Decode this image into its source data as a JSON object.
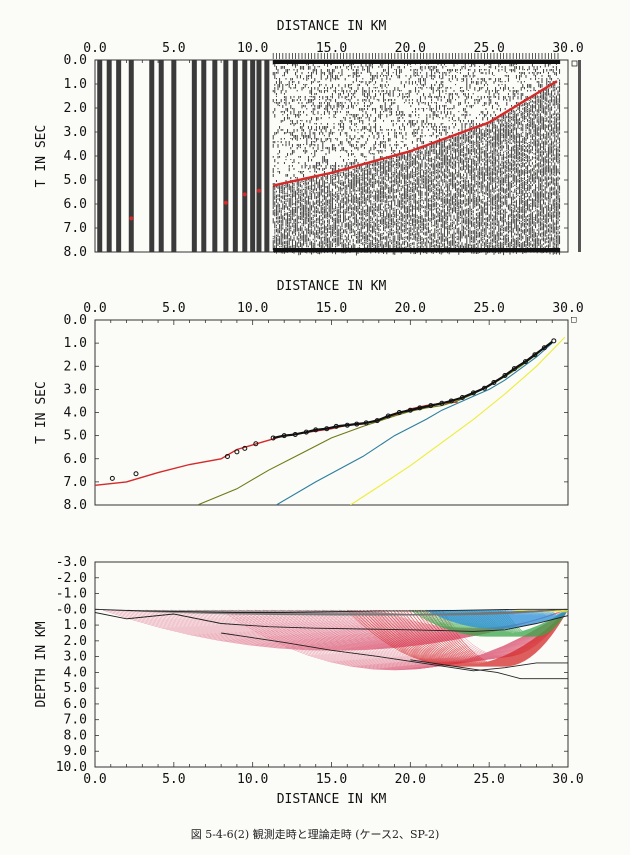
{
  "caption": "図 5-4-6(2)  観測走時と理論走時 (ケース2、SP-2)",
  "colors": {
    "red": "#d42a2a",
    "olive": "#6f7a14",
    "teal": "#2b7f9e",
    "yellow": "#eded3a",
    "pink": "#e0708a",
    "green": "#3aa54a",
    "blue": "#2a8fd8",
    "black": "#222222"
  },
  "chart_data": [
    {
      "type": "scatter",
      "xlabel": "DISTANCE IN KM",
      "ylabel": "T IN SEC",
      "xticks": [
        "0.0",
        "5.0",
        "10.0",
        "15.0",
        "20.0",
        "25.0",
        "30.0"
      ],
      "yticks": [
        "0.0",
        "1.0",
        "2.0",
        "3.0",
        "4.0",
        "5.0",
        "6.0",
        "7.0",
        "8.0"
      ],
      "xlim": [
        0,
        30
      ],
      "ylim": [
        0,
        8
      ],
      "traces_x": [
        0.3,
        0.9,
        1.5,
        2.3,
        3.6,
        4.2,
        5.0,
        6.3,
        6.9,
        7.6,
        8.3,
        8.9,
        9.5,
        10.0,
        10.4,
        10.9
      ],
      "dense_traces_from_km": 11.3,
      "dense_traces_to_km": 29.5,
      "first_arrival": {
        "x": [
          0,
          5,
          8,
          10,
          11.5,
          15,
          20,
          25,
          29.5
        ],
        "y": [
          7.1,
          6.4,
          5.9,
          5.6,
          5.2,
          4.7,
          3.8,
          2.6,
          0.8
        ]
      }
    },
    {
      "type": "line",
      "xlabel": "DISTANCE IN KM",
      "ylabel": "T IN SEC",
      "xticks": [
        "0.0",
        "5.0",
        "10.0",
        "15.0",
        "20.0",
        "25.0",
        "30.0"
      ],
      "yticks": [
        "0.0",
        "1.0",
        "2.0",
        "3.0",
        "4.0",
        "5.0",
        "6.0",
        "7.0",
        "8.0"
      ],
      "xlim": [
        0,
        30
      ],
      "ylim": [
        0,
        8
      ],
      "series": [
        {
          "color": "red",
          "x": [
            0,
            2,
            4,
            6,
            8,
            9,
            10,
            11,
            12,
            13,
            14,
            15,
            16,
            17,
            18,
            19,
            20,
            21,
            22,
            23
          ],
          "y": [
            7.15,
            7.0,
            6.6,
            6.25,
            6.0,
            5.6,
            5.4,
            5.2,
            5.0,
            4.9,
            4.8,
            4.7,
            4.55,
            4.5,
            4.3,
            4.1,
            3.85,
            3.7,
            3.6,
            3.55
          ]
        },
        {
          "color": "olive",
          "x": [
            6.5,
            9,
            11,
            13,
            15,
            17,
            19,
            20,
            21,
            22,
            23,
            24,
            25,
            26,
            27,
            28,
            29
          ],
          "y": [
            8.0,
            7.3,
            6.5,
            5.8,
            5.1,
            4.6,
            4.15,
            3.95,
            3.8,
            3.7,
            3.5,
            3.2,
            2.85,
            2.45,
            2.0,
            1.5,
            0.9
          ]
        },
        {
          "color": "teal",
          "x": [
            11.5,
            14,
            17,
            19,
            21,
            22,
            23,
            24,
            25,
            26,
            27,
            28,
            29
          ],
          "y": [
            8.0,
            7.0,
            5.9,
            5.0,
            4.3,
            3.9,
            3.6,
            3.3,
            3.0,
            2.6,
            2.1,
            1.6,
            1.0
          ]
        },
        {
          "color": "yellow",
          "x": [
            16.2,
            18,
            20,
            22,
            24,
            26,
            28,
            29.8
          ],
          "y": [
            8.0,
            7.2,
            6.3,
            5.3,
            4.3,
            3.2,
            2.0,
            0.75
          ]
        }
      ],
      "observed": {
        "x": [
          1.1,
          2.6,
          8.4,
          9.0,
          9.5,
          10.2,
          11.3,
          12.0,
          12.7,
          13.4,
          14.0,
          14.7,
          15.3,
          16.0,
          16.6,
          17.2,
          17.9,
          18.6,
          19.3,
          20.0,
          20.6,
          21.3,
          22.0,
          22.6,
          23.3,
          24.0,
          24.7,
          25.3,
          26.0,
          26.6,
          27.3,
          27.9,
          28.5,
          29.1
        ],
        "y": [
          6.85,
          6.65,
          5.9,
          5.7,
          5.55,
          5.35,
          5.1,
          5.0,
          4.95,
          4.85,
          4.75,
          4.7,
          4.6,
          4.55,
          4.5,
          4.45,
          4.35,
          4.15,
          4.0,
          3.9,
          3.8,
          3.7,
          3.6,
          3.5,
          3.35,
          3.15,
          2.95,
          2.7,
          2.4,
          2.1,
          1.8,
          1.5,
          1.2,
          0.9
        ]
      },
      "marker_box_label": "□"
    },
    {
      "type": "line",
      "xlabel": "DISTANCE IN KM",
      "ylabel": "DEPTH IN KM",
      "xticks": [
        "0.0",
        "5.0",
        "10.0",
        "15.0",
        "20.0",
        "25.0",
        "30.0"
      ],
      "yticks": [
        "-3.0",
        "-2.0",
        "-1.0",
        "-0.0",
        "1.0",
        "2.0",
        "3.0",
        "4.0",
        "5.0",
        "6.0",
        "7.0",
        "8.0",
        "9.0",
        "10.0"
      ],
      "xlim": [
        0,
        30
      ],
      "ylim": [
        -3,
        10
      ],
      "boundaries": [
        {
          "x": [
            0,
            3,
            6,
            9,
            12,
            15,
            18,
            21,
            24,
            27,
            30
          ],
          "y": [
            0.0,
            0.1,
            0.15,
            0.2,
            0.2,
            0.15,
            0.1,
            0.1,
            0.05,
            0.0,
            0.0
          ]
        },
        {
          "x": [
            0,
            2,
            5,
            8,
            11,
            14,
            17,
            20,
            22,
            24,
            26,
            28,
            30
          ],
          "y": [
            0.2,
            0.6,
            0.3,
            0.9,
            1.1,
            1.2,
            1.25,
            1.3,
            1.35,
            1.4,
            1.3,
            0.9,
            0.4
          ]
        },
        {
          "x": [
            8,
            10,
            12,
            15,
            18,
            20,
            22,
            24,
            26,
            28,
            30
          ],
          "y": [
            1.5,
            1.8,
            2.1,
            2.6,
            3.0,
            3.3,
            3.6,
            3.9,
            3.7,
            3.4,
            3.4
          ]
        },
        {
          "x": [
            20,
            22,
            24,
            25.5,
            27,
            30
          ],
          "y": [
            3.2,
            3.5,
            3.8,
            4.0,
            4.4,
            4.4
          ]
        }
      ]
    }
  ]
}
